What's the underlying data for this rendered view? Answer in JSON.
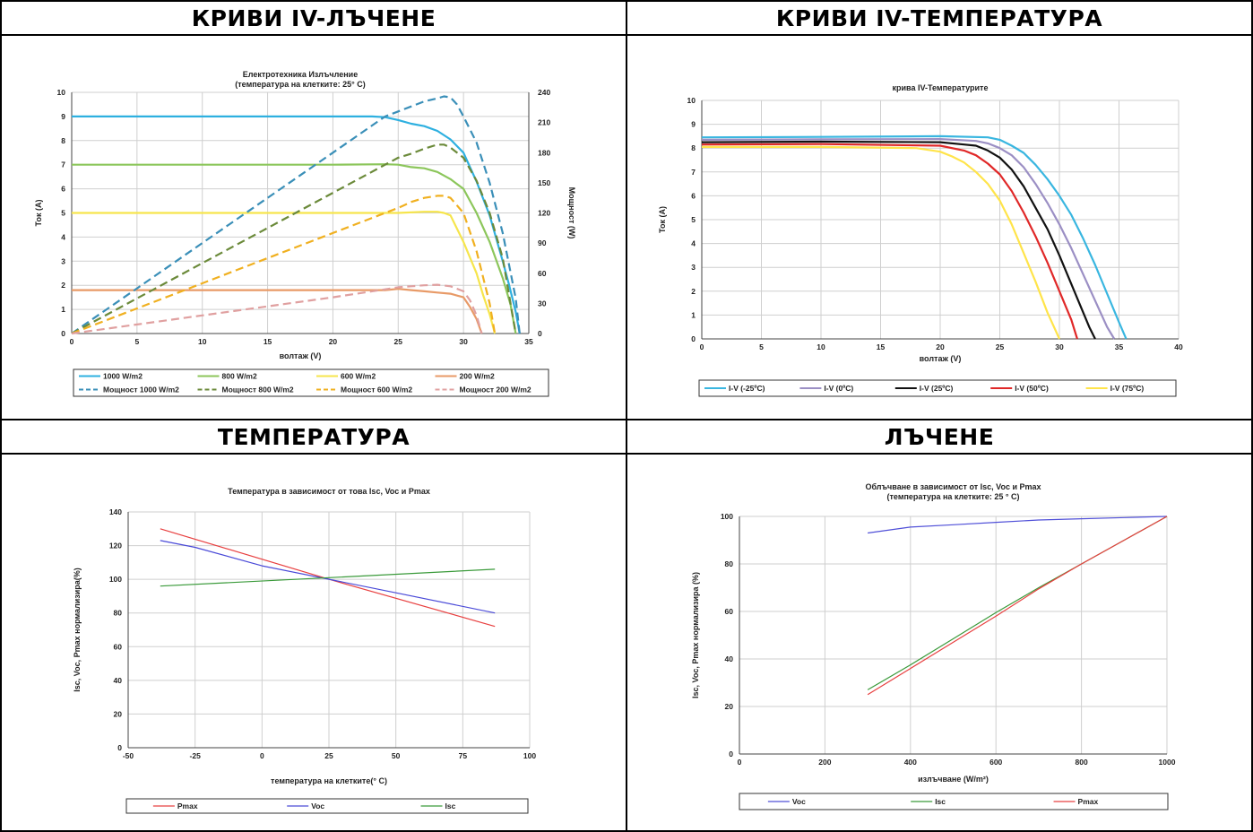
{
  "headers": [
    "КРИВИ IV-ЛЪЧЕНЕ",
    "КРИВИ IV-ТЕМПЕРАТУРА",
    "ТЕМПЕРАТУРА",
    "ЛЪЧЕНЕ"
  ],
  "chart_data": [
    {
      "type": "line",
      "title": "Електротехника Излъчление",
      "subtitle": "(температура на клетките: 25° C)",
      "xlabel": "волтаж (V)",
      "ylabel": "Ток (A)",
      "y2label": "Мощност (W)",
      "xlim": [
        0,
        35
      ],
      "ylim": [
        0,
        10
      ],
      "y2lim": [
        0,
        240
      ],
      "xticks": [
        0,
        5,
        10,
        15,
        20,
        25,
        30,
        35
      ],
      "yticks": [
        0,
        1,
        2,
        3,
        4,
        5,
        6,
        7,
        8,
        9,
        10
      ],
      "y2ticks": [
        0,
        30,
        60,
        90,
        120,
        150,
        180,
        210,
        240
      ],
      "grid": true,
      "legend_position": "bottom",
      "series": [
        {
          "name": "1000 W/m2",
          "axis": "left",
          "style": "solid",
          "color": "#2eb0e0",
          "x": [
            0,
            5,
            10,
            15,
            20,
            23,
            24,
            25,
            26,
            27,
            28,
            29,
            30,
            31,
            32,
            33,
            33.5,
            34,
            34.3
          ],
          "y": [
            9,
            9,
            9,
            9,
            9,
            9,
            8.97,
            8.85,
            8.7,
            8.6,
            8.4,
            8.05,
            7.5,
            6.3,
            4.9,
            3.0,
            2.0,
            0.9,
            0
          ]
        },
        {
          "name": "800 W/m2",
          "axis": "left",
          "style": "solid",
          "color": "#8cc65b",
          "x": [
            0,
            5,
            10,
            15,
            20,
            24,
            25,
            26,
            27,
            28,
            29,
            30,
            31,
            32,
            33,
            33.6,
            34
          ],
          "y": [
            7,
            7,
            7,
            7,
            7,
            7.02,
            7.0,
            6.9,
            6.85,
            6.7,
            6.4,
            6.0,
            5.0,
            3.8,
            2.3,
            1.2,
            0
          ]
        },
        {
          "name": "600 W/m2",
          "axis": "left",
          "style": "solid",
          "color": "#f6e54c",
          "x": [
            0,
            5,
            10,
            15,
            20,
            25,
            27,
            28,
            28.5,
            29,
            30,
            31,
            31.5,
            32,
            32.4
          ],
          "y": [
            5,
            5,
            5,
            5,
            5,
            5,
            5.05,
            5.05,
            5.0,
            4.9,
            3.8,
            2.5,
            1.6,
            0.8,
            0
          ]
        },
        {
          "name": "200 W/m2",
          "axis": "left",
          "style": "solid",
          "color": "#e89a67",
          "x": [
            0,
            5,
            10,
            15,
            20,
            24,
            25,
            26,
            27,
            28,
            29,
            30,
            30.5,
            31,
            31.4
          ],
          "y": [
            1.8,
            1.8,
            1.8,
            1.8,
            1.8,
            1.8,
            1.85,
            1.8,
            1.75,
            1.7,
            1.65,
            1.5,
            1.1,
            0.6,
            0
          ]
        },
        {
          "name": "Мощност 1000 W/m2",
          "axis": "right",
          "style": "dashed",
          "color": "#3a8fb8",
          "x": [
            0,
            5,
            10,
            15,
            20,
            24,
            25,
            26,
            27,
            28,
            28.5,
            29,
            29.5,
            30,
            31,
            32,
            33,
            34,
            34.3
          ],
          "y": [
            0,
            45,
            90,
            135,
            180,
            216,
            221,
            226,
            231,
            234,
            236,
            235,
            228,
            216,
            190,
            150,
            100,
            35,
            0
          ]
        },
        {
          "name": "Мощност 800 W/m2",
          "axis": "right",
          "style": "dashed",
          "color": "#6b8a3a",
          "x": [
            0,
            5,
            10,
            15,
            20,
            24,
            25,
            26,
            27,
            28,
            28.5,
            29,
            30,
            31,
            32,
            33,
            34
          ],
          "y": [
            0,
            35,
            70,
            105,
            140,
            168,
            175,
            179,
            184,
            188,
            188,
            185,
            175,
            152,
            120,
            75,
            0
          ]
        },
        {
          "name": "Мощност 600 W/m2",
          "axis": "right",
          "style": "dashed",
          "color": "#f0b020",
          "x": [
            0,
            5,
            10,
            15,
            20,
            25,
            26,
            27,
            28,
            28.5,
            29,
            30,
            31,
            32,
            32.4
          ],
          "y": [
            0,
            25,
            50,
            75,
            100,
            125,
            131,
            135,
            137,
            137,
            135,
            120,
            82,
            30,
            0
          ]
        },
        {
          "name": "Мощност 200 W/m2",
          "axis": "right",
          "style": "dashed",
          "color": "#e0a0a0",
          "x": [
            0,
            5,
            10,
            15,
            20,
            24,
            25,
            26,
            27,
            28,
            29,
            30,
            30.5,
            31,
            31.4
          ],
          "y": [
            0,
            9,
            18,
            27,
            36,
            44,
            46,
            47,
            48,
            48.5,
            47,
            42,
            33,
            18,
            0
          ]
        }
      ]
    },
    {
      "type": "line",
      "title": "крива IV-Температурите",
      "xlabel": "волтаж (V)",
      "ylabel": "Ток (A)",
      "xlim": [
        0,
        40
      ],
      "ylim": [
        0,
        10
      ],
      "xticks": [
        0,
        5,
        10,
        15,
        20,
        25,
        30,
        35,
        40
      ],
      "yticks": [
        0,
        1,
        2,
        3,
        4,
        5,
        6,
        7,
        8,
        9,
        10
      ],
      "grid": true,
      "legend_position": "bottom",
      "series": [
        {
          "name": "I-V (-25ºC)",
          "color": "#39b6e0",
          "x": [
            0,
            10,
            20,
            24,
            25,
            26,
            27,
            28,
            29,
            30,
            31,
            32,
            33,
            34,
            35,
            35.6
          ],
          "y": [
            8.45,
            8.47,
            8.5,
            8.45,
            8.35,
            8.1,
            7.8,
            7.3,
            6.7,
            6.0,
            5.2,
            4.2,
            3.1,
            1.9,
            0.7,
            0
          ]
        },
        {
          "name": "I-V (0ºC)",
          "color": "#9b8fc4",
          "x": [
            0,
            10,
            20,
            23,
            24,
            25,
            26,
            27,
            28,
            29,
            30,
            31,
            32,
            33,
            34,
            34.6
          ],
          "y": [
            8.35,
            8.37,
            8.38,
            8.3,
            8.2,
            8.0,
            7.7,
            7.2,
            6.5,
            5.7,
            4.8,
            3.8,
            2.7,
            1.6,
            0.5,
            0
          ]
        },
        {
          "name": "I-V (25ºC)",
          "color": "#111111",
          "x": [
            0,
            10,
            20,
            22,
            23,
            24,
            25,
            26,
            27,
            28,
            29,
            30,
            31,
            32,
            32.5,
            33
          ],
          "y": [
            8.25,
            8.27,
            8.25,
            8.15,
            8.1,
            7.9,
            7.6,
            7.1,
            6.4,
            5.5,
            4.6,
            3.5,
            2.3,
            1.1,
            0.5,
            0
          ]
        },
        {
          "name": "I-V (50ºC)",
          "color": "#e02828",
          "x": [
            0,
            10,
            20,
            22,
            23,
            24,
            25,
            26,
            27,
            28,
            29,
            30,
            31,
            31.5
          ],
          "y": [
            8.15,
            8.17,
            8.1,
            7.9,
            7.7,
            7.35,
            6.9,
            6.2,
            5.3,
            4.3,
            3.2,
            2.0,
            0.8,
            0
          ]
        },
        {
          "name": "I-V (75ºC)",
          "color": "#ffe44a",
          "x": [
            0,
            10,
            18,
            20,
            21,
            22,
            23,
            24,
            25,
            26,
            27,
            28,
            29,
            30
          ],
          "y": [
            8.05,
            8.05,
            8.0,
            7.85,
            7.65,
            7.4,
            7.0,
            6.5,
            5.8,
            4.8,
            3.6,
            2.4,
            1.1,
            0
          ]
        }
      ]
    },
    {
      "type": "line",
      "title": "Температура в зависимост от това Isc, Voc и Pmax",
      "xlabel": "температура на клетките(° C)",
      "ylabel": "Isc, Voc, Pmax нормализира(%)",
      "xlim": [
        -50,
        100
      ],
      "ylim": [
        0,
        140
      ],
      "xticks": [
        -50,
        -25,
        0,
        25,
        50,
        75,
        100
      ],
      "yticks": [
        0,
        20,
        40,
        60,
        80,
        100,
        120,
        140
      ],
      "grid": true,
      "legend_position": "bottom",
      "series": [
        {
          "name": "Pmax",
          "color": "#e84040",
          "x": [
            -38,
            25,
            87
          ],
          "y": [
            130,
            100,
            72
          ]
        },
        {
          "name": "Voc",
          "color": "#4a4ad8",
          "x": [
            -38,
            -25,
            0,
            25,
            50,
            87
          ],
          "y": [
            123,
            119,
            108,
            100,
            92,
            80
          ]
        },
        {
          "name": "Isc",
          "color": "#3a9a3a",
          "x": [
            -38,
            25,
            87
          ],
          "y": [
            96,
            101,
            106
          ]
        }
      ]
    },
    {
      "type": "line",
      "title": "Облъчване в зависимост от Isc, Voc и Pmax",
      "subtitle": "(температура на клетките: 25 ° C)",
      "xlabel": "излъчване (W/m²)",
      "ylabel": "Isc, Voc, Pmax нормализира (%)",
      "xlim": [
        0,
        1000
      ],
      "ylim": [
        0,
        100
      ],
      "xticks": [
        0,
        200,
        400,
        600,
        800,
        1000
      ],
      "yticks": [
        0,
        20,
        40,
        60,
        80,
        100
      ],
      "grid": true,
      "legend_position": "bottom",
      "series": [
        {
          "name": "Voc",
          "color": "#5050d8",
          "x": [
            300,
            400,
            500,
            600,
            700,
            800,
            900,
            1000
          ],
          "y": [
            93,
            95.5,
            96.5,
            97.5,
            98.5,
            99,
            99.5,
            100
          ]
        },
        {
          "name": "Isc",
          "color": "#3a9a3a",
          "x": [
            300,
            400,
            500,
            600,
            700,
            800,
            900,
            1000
          ],
          "y": [
            27,
            37.5,
            48.5,
            59.5,
            70,
            80,
            90,
            100
          ]
        },
        {
          "name": "Pmax",
          "color": "#e84040",
          "x": [
            300,
            400,
            500,
            600,
            700,
            800,
            900,
            1000
          ],
          "y": [
            25,
            36,
            47,
            58,
            69.5,
            80,
            90,
            100
          ]
        }
      ]
    }
  ]
}
